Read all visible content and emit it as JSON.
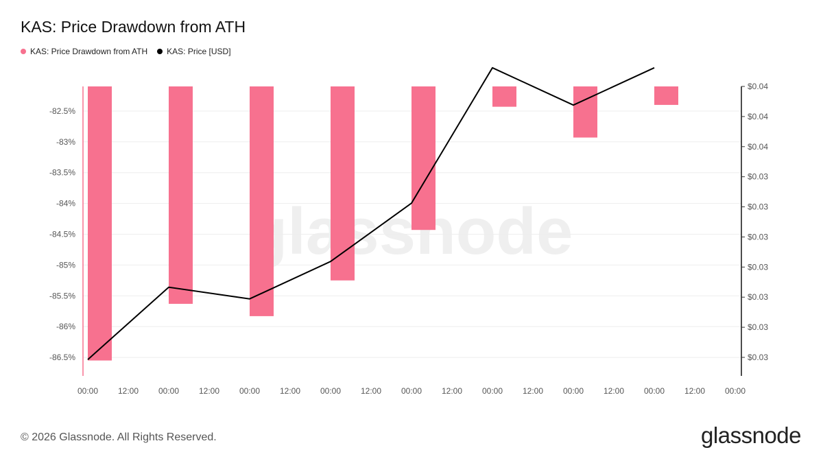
{
  "header": {
    "title": "KAS: Price Drawdown from ATH"
  },
  "legend": [
    {
      "label": "KAS: Price Drawdown from ATH",
      "color": "#f7718f"
    },
    {
      "label": "KAS: Price [USD]",
      "color": "#000000"
    }
  ],
  "footer": {
    "copyright": "© 2026 Glassnode. All Rights Reserved.",
    "logo": "glassnode"
  },
  "watermark": "glassnode",
  "chart_data": {
    "type": "bar",
    "x_tick_labels": [
      "00:00",
      "12:00",
      "00:00",
      "12:00",
      "00:00",
      "12:00",
      "00:00",
      "12:00",
      "00:00",
      "12:00",
      "00:00",
      "12:00",
      "00:00",
      "12:00",
      "00:00",
      "12:00",
      "00:00"
    ],
    "y_left_tick_labels": [
      "-82.5%",
      "-83%",
      "-83.5%",
      "-84%",
      "-84.5%",
      "-85%",
      "-85.5%",
      "-86%",
      "-86.5%"
    ],
    "y_left_ticks": [
      -82.5,
      -83,
      -83.5,
      -84,
      -84.5,
      -85,
      -85.5,
      -86,
      -86.5
    ],
    "y_left_range": [
      -86.8,
      -82.1
    ],
    "y_right_tick_labels": [
      "$0.04",
      "$0.04",
      "$0.04",
      "$0.03",
      "$0.03",
      "$0.03",
      "$0.03",
      "$0.03",
      "$0.03",
      "$0.03"
    ],
    "y_right_range": [
      0.0276,
      0.04
    ],
    "grid": true,
    "series": [
      {
        "name": "KAS: Price Drawdown from ATH",
        "type": "bar",
        "color": "#f7718f",
        "x_index": [
          0,
          1,
          2,
          3,
          4,
          5,
          6,
          7
        ],
        "values": [
          -86.55,
          -85.63,
          -85.83,
          -85.25,
          -84.43,
          -82.43,
          -82.93,
          -82.4
        ]
      },
      {
        "name": "KAS: Price [USD]",
        "type": "line",
        "color": "#000000",
        "x_index": [
          0,
          1,
          2,
          3,
          4,
          5,
          6,
          7
        ],
        "values": [
          0.0283,
          0.0314,
          0.0309,
          0.0325,
          0.035,
          0.0408,
          0.0392,
          0.0408
        ]
      }
    ]
  }
}
